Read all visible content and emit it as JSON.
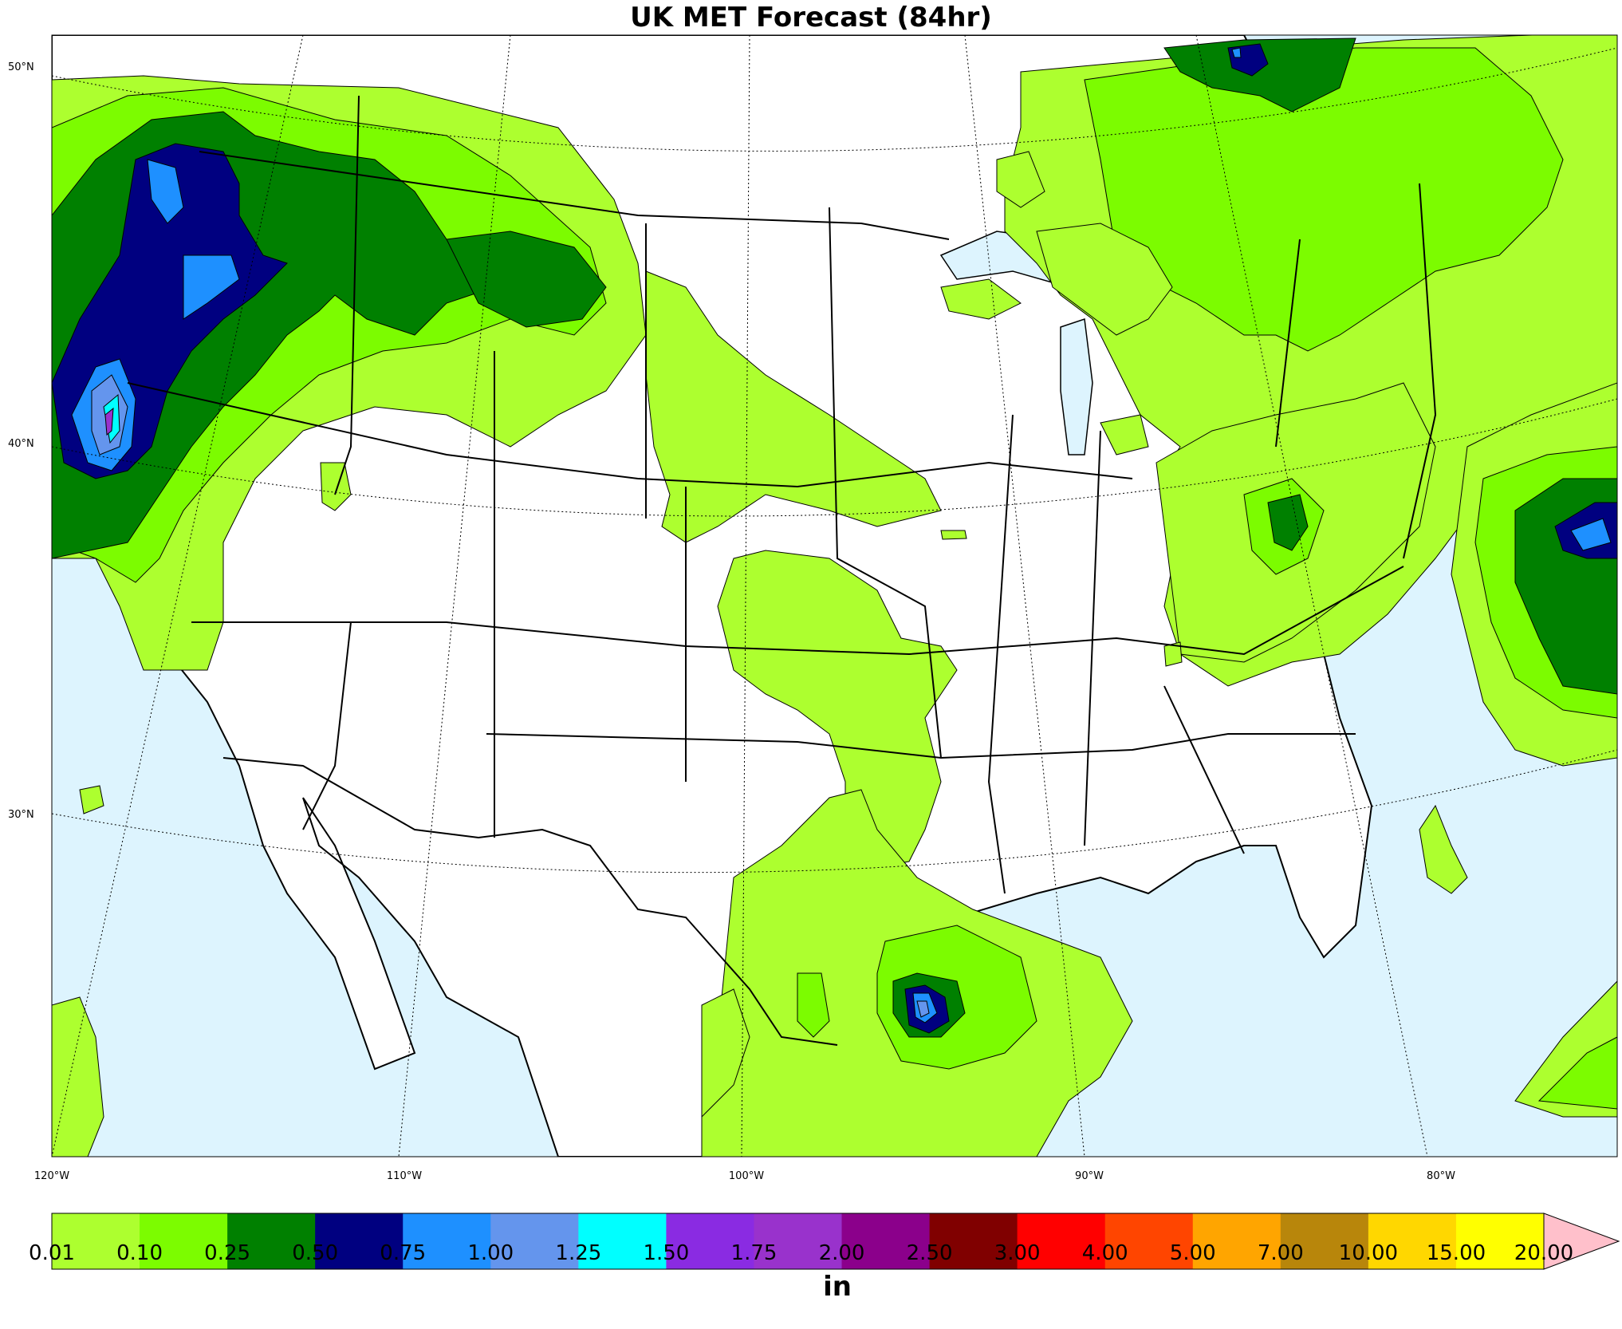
{
  "title": "UK MET Forecast (84hr)",
  "latitude_labels": [
    "50°N",
    "40°N",
    "30°N"
  ],
  "longitude_labels": [
    "120°W",
    "110°W",
    "100°W",
    "90°W",
    "80°W"
  ],
  "colorbar": {
    "unit": "in",
    "ticks": [
      "0.01",
      "0.10",
      "0.25",
      "0.50",
      "0.75",
      "1.00",
      "1.25",
      "1.50",
      "1.75",
      "2.00",
      "2.50",
      "3.00",
      "4.00",
      "5.00",
      "7.00",
      "10.00",
      "15.00",
      "20.00"
    ],
    "colors": [
      "#adff2f",
      "#7cfc00",
      "#008000",
      "#000080",
      "#1e90ff",
      "#6495ed",
      "#00ffff",
      "#8a2be2",
      "#9932cc",
      "#8b008b",
      "#800000",
      "#ff0000",
      "#ff4500",
      "#ffa500",
      "#b8860b",
      "#ffd700",
      "#ffff00"
    ],
    "extend_color": "#ffc0cb"
  },
  "colors": {
    "water": "#ddf4fe",
    "land": "#ffffff"
  }
}
